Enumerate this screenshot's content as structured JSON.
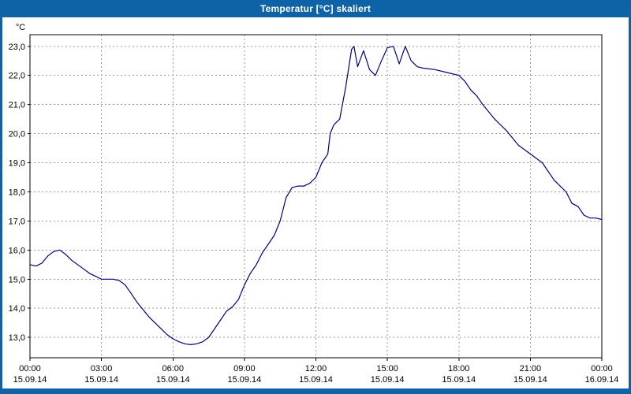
{
  "window": {
    "title": "Temperatur [°C] skaliert",
    "titlebar_color": "#0D63A5"
  },
  "chart_data": {
    "type": "line",
    "title": "Temperatur [°C] skaliert",
    "y_axis_label": "°C",
    "xlabel": "",
    "ylabel": "°C",
    "ylim": [
      12.3,
      23.4
    ],
    "x_range_hours": [
      0,
      24
    ],
    "grid": "dashed",
    "legend": "none",
    "line_color": "#000080",
    "grid_color": "#999999",
    "y_ticks": [
      {
        "value": 13,
        "label": "13,0"
      },
      {
        "value": 14,
        "label": "14,0"
      },
      {
        "value": 15,
        "label": "15,0"
      },
      {
        "value": 16,
        "label": "16,0"
      },
      {
        "value": 17,
        "label": "17,0"
      },
      {
        "value": 18,
        "label": "18,0"
      },
      {
        "value": 19,
        "label": "19,0"
      },
      {
        "value": 20,
        "label": "20,0"
      },
      {
        "value": 21,
        "label": "21,0"
      },
      {
        "value": 22,
        "label": "22,0"
      },
      {
        "value": 23,
        "label": "23,0"
      }
    ],
    "x_ticks": [
      {
        "hour": 0,
        "time": "00:00",
        "date": "15.09.14"
      },
      {
        "hour": 3,
        "time": "03:00",
        "date": "15.09.14"
      },
      {
        "hour": 6,
        "time": "06:00",
        "date": "15.09.14"
      },
      {
        "hour": 9,
        "time": "09:00",
        "date": "15.09.14"
      },
      {
        "hour": 12,
        "time": "12:00",
        "date": "15.09.14"
      },
      {
        "hour": 15,
        "time": "15:00",
        "date": "15.09.14"
      },
      {
        "hour": 18,
        "time": "18:00",
        "date": "15.09.14"
      },
      {
        "hour": 21,
        "time": "21:00",
        "date": "15.09.14"
      },
      {
        "hour": 24,
        "time": "00:00",
        "date": "16.09.14"
      }
    ],
    "series": [
      {
        "name": "Temperatur [°C]",
        "points": [
          [
            0.0,
            15.5
          ],
          [
            0.25,
            15.45
          ],
          [
            0.5,
            15.55
          ],
          [
            0.75,
            15.8
          ],
          [
            1.0,
            15.95
          ],
          [
            1.25,
            16.0
          ],
          [
            1.5,
            15.85
          ],
          [
            1.75,
            15.65
          ],
          [
            2.0,
            15.5
          ],
          [
            2.25,
            15.35
          ],
          [
            2.5,
            15.2
          ],
          [
            2.75,
            15.1
          ],
          [
            3.0,
            15.0
          ],
          [
            3.25,
            15.0
          ],
          [
            3.5,
            15.0
          ],
          [
            3.75,
            14.95
          ],
          [
            4.0,
            14.8
          ],
          [
            4.25,
            14.5
          ],
          [
            4.5,
            14.2
          ],
          [
            4.75,
            13.95
          ],
          [
            5.0,
            13.7
          ],
          [
            5.25,
            13.5
          ],
          [
            5.5,
            13.3
          ],
          [
            5.75,
            13.1
          ],
          [
            6.0,
            12.95
          ],
          [
            6.25,
            12.85
          ],
          [
            6.5,
            12.78
          ],
          [
            6.75,
            12.75
          ],
          [
            7.0,
            12.78
          ],
          [
            7.25,
            12.85
          ],
          [
            7.5,
            13.0
          ],
          [
            7.75,
            13.3
          ],
          [
            8.0,
            13.6
          ],
          [
            8.25,
            13.9
          ],
          [
            8.5,
            14.05
          ],
          [
            8.75,
            14.3
          ],
          [
            9.0,
            14.8
          ],
          [
            9.25,
            15.2
          ],
          [
            9.5,
            15.5
          ],
          [
            9.75,
            15.9
          ],
          [
            10.0,
            16.2
          ],
          [
            10.25,
            16.5
          ],
          [
            10.5,
            17.0
          ],
          [
            10.75,
            17.8
          ],
          [
            11.0,
            18.15
          ],
          [
            11.25,
            18.2
          ],
          [
            11.5,
            18.2
          ],
          [
            11.75,
            18.3
          ],
          [
            12.0,
            18.5
          ],
          [
            12.25,
            19.0
          ],
          [
            12.5,
            19.3
          ],
          [
            12.6,
            20.0
          ],
          [
            12.75,
            20.3
          ],
          [
            13.0,
            20.5
          ],
          [
            13.25,
            21.6
          ],
          [
            13.5,
            22.9
          ],
          [
            13.6,
            23.0
          ],
          [
            13.75,
            22.3
          ],
          [
            14.0,
            22.85
          ],
          [
            14.25,
            22.2
          ],
          [
            14.5,
            22.0
          ],
          [
            14.75,
            22.5
          ],
          [
            15.0,
            22.95
          ],
          [
            15.25,
            23.0
          ],
          [
            15.5,
            22.4
          ],
          [
            15.75,
            23.0
          ],
          [
            16.0,
            22.5
          ],
          [
            16.25,
            22.3
          ],
          [
            16.5,
            22.25
          ],
          [
            17.0,
            22.2
          ],
          [
            17.5,
            22.1
          ],
          [
            18.0,
            22.0
          ],
          [
            18.25,
            21.8
          ],
          [
            18.5,
            21.5
          ],
          [
            18.75,
            21.3
          ],
          [
            19.0,
            21.0
          ],
          [
            19.5,
            20.5
          ],
          [
            20.0,
            20.1
          ],
          [
            20.5,
            19.6
          ],
          [
            21.0,
            19.3
          ],
          [
            21.5,
            19.0
          ],
          [
            22.0,
            18.4
          ],
          [
            22.25,
            18.2
          ],
          [
            22.5,
            18.0
          ],
          [
            22.75,
            17.6
          ],
          [
            23.0,
            17.5
          ],
          [
            23.25,
            17.2
          ],
          [
            23.5,
            17.1
          ],
          [
            23.75,
            17.1
          ],
          [
            24.0,
            17.05
          ]
        ]
      }
    ]
  }
}
